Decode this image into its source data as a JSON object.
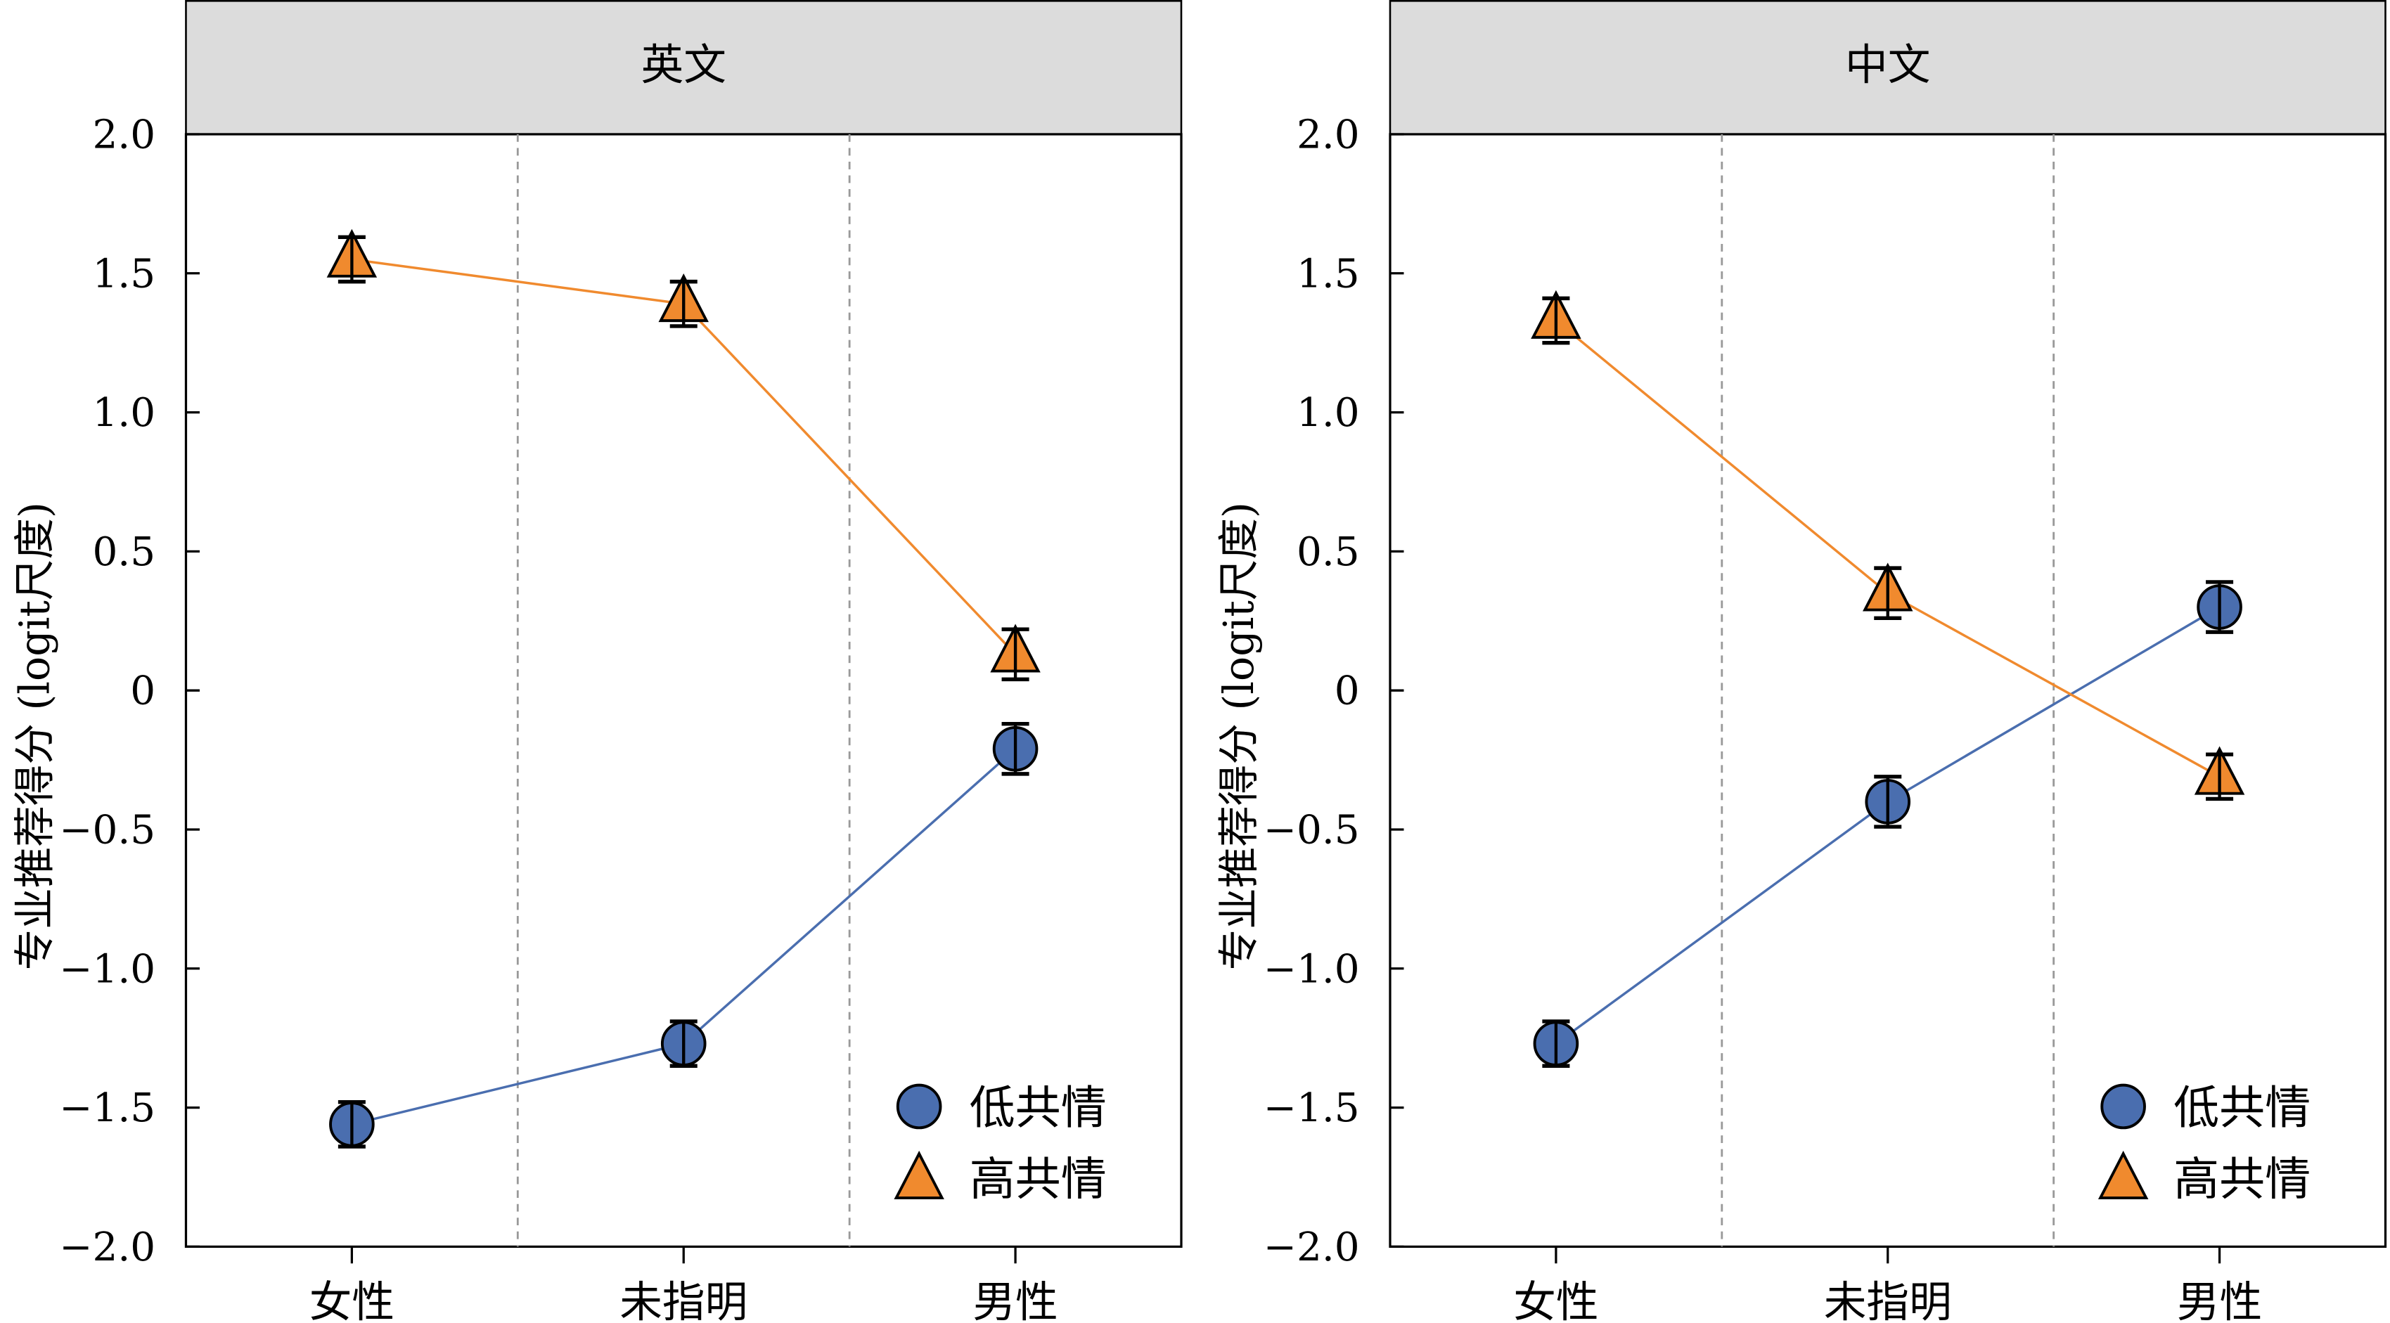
{
  "chart_data": [
    {
      "type": "line",
      "title": "英文",
      "categories": [
        "女性",
        "未指明",
        "男性"
      ],
      "xlabel": "",
      "ylabel": "专业推荐得分 (logit尺度)",
      "ylim": [
        -2.0,
        2.0
      ],
      "yticks": [
        "−2.0",
        "−1.5",
        "−1.0",
        "−0.5",
        "0",
        "0.5",
        "1.0",
        "1.5",
        "2.0"
      ],
      "ytick_values": [
        -2.0,
        -1.5,
        -1.0,
        -0.5,
        0,
        0.5,
        1.0,
        1.5,
        2.0
      ],
      "legend_position": "bottom-right",
      "series": [
        {
          "name": "低共情",
          "marker": "circle",
          "color": "#4a6eaf",
          "values": [
            -1.56,
            -1.27,
            -0.21
          ],
          "errors": [
            0.08,
            0.08,
            0.09
          ]
        },
        {
          "name": "高共情",
          "marker": "triangle",
          "color": "#f08a2e",
          "values": [
            1.55,
            1.39,
            0.13
          ],
          "errors": [
            0.08,
            0.08,
            0.09
          ]
        }
      ]
    },
    {
      "type": "line",
      "title": "中文",
      "categories": [
        "女性",
        "未指明",
        "男性"
      ],
      "xlabel": "",
      "ylabel": "专业推荐得分 (logit尺度)",
      "ylim": [
        -2.0,
        2.0
      ],
      "yticks": [
        "−2.0",
        "−1.5",
        "−1.0",
        "−0.5",
        "0",
        "0.5",
        "1.0",
        "1.5",
        "2.0"
      ],
      "ytick_values": [
        -2.0,
        -1.5,
        -1.0,
        -0.5,
        0,
        0.5,
        1.0,
        1.5,
        2.0
      ],
      "legend_position": "bottom-right",
      "series": [
        {
          "name": "低共情",
          "marker": "circle",
          "color": "#4a6eaf",
          "values": [
            -1.27,
            -0.4,
            0.3
          ],
          "errors": [
            0.08,
            0.09,
            0.09
          ]
        },
        {
          "name": "高共情",
          "marker": "triangle",
          "color": "#f08a2e",
          "values": [
            1.33,
            0.35,
            -0.31
          ],
          "errors": [
            0.08,
            0.09,
            0.08
          ]
        }
      ]
    }
  ]
}
